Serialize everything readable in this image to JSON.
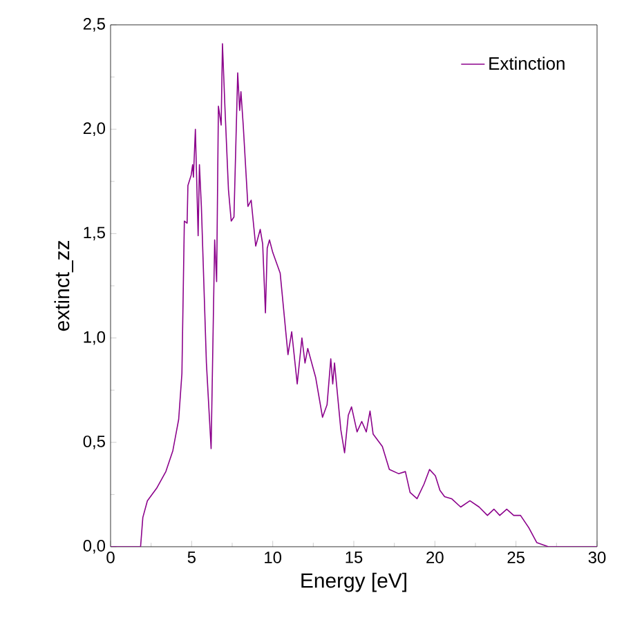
{
  "chart_data": {
    "type": "line",
    "xlabel": "Energy [eV]",
    "ylabel": "extinct_zz",
    "legend": "top right",
    "grid": false,
    "x": [
      0,
      1.85,
      1.99,
      2.27,
      2.84,
      3.41,
      3.84,
      4.2,
      4.4,
      4.55,
      4.72,
      4.77,
      4.97,
      5.06,
      5.11,
      5.23,
      5.4,
      5.48,
      5.6,
      5.91,
      6.2,
      6.42,
      6.54,
      6.65,
      6.82,
      6.9,
      7.05,
      7.27,
      7.44,
      7.61,
      7.84,
      7.96,
      8.04,
      8.18,
      8.47,
      8.67,
      8.95,
      9.23,
      9.38,
      9.55,
      9.66,
      9.8,
      10.0,
      10.46,
      10.94,
      11.17,
      11.51,
      11.8,
      11.99,
      12.16,
      12.65,
      13.07,
      13.35,
      13.58,
      13.7,
      13.81,
      14.2,
      14.43,
      14.66,
      14.86,
      15.2,
      15.49,
      15.77,
      16.0,
      16.19,
      16.76,
      17.19,
      17.76,
      18.18,
      18.47,
      18.9,
      19.33,
      19.67,
      20.03,
      20.31,
      20.6,
      21.03,
      21.59,
      22.16,
      22.73,
      23.24,
      23.64,
      24.0,
      24.43,
      24.86,
      25.28,
      25.8,
      26.28,
      27.0,
      30
    ],
    "series": [
      {
        "name": "Extinction",
        "color": "#8b008b",
        "values": [
          0,
          0,
          0.14,
          0.22,
          0.28,
          0.36,
          0.46,
          0.61,
          0.83,
          1.56,
          1.55,
          1.73,
          1.78,
          1.83,
          1.77,
          2.0,
          1.49,
          1.83,
          1.63,
          0.88,
          0.47,
          1.47,
          1.27,
          2.11,
          2.02,
          2.41,
          2.11,
          1.71,
          1.56,
          1.58,
          2.27,
          2.09,
          2.18,
          2.02,
          1.63,
          1.66,
          1.44,
          1.52,
          1.45,
          1.12,
          1.43,
          1.47,
          1.41,
          1.31,
          0.92,
          1.03,
          0.78,
          1.0,
          0.88,
          0.95,
          0.81,
          0.62,
          0.68,
          0.9,
          0.78,
          0.88,
          0.56,
          0.45,
          0.63,
          0.67,
          0.55,
          0.6,
          0.55,
          0.65,
          0.54,
          0.48,
          0.37,
          0.35,
          0.36,
          0.26,
          0.23,
          0.3,
          0.37,
          0.34,
          0.27,
          0.24,
          0.23,
          0.19,
          0.22,
          0.19,
          0.15,
          0.18,
          0.15,
          0.18,
          0.15,
          0.15,
          0.09,
          0.02,
          0,
          0
        ]
      }
    ],
    "xlim": [
      0,
      30
    ],
    "xticks": [
      0,
      5,
      10,
      15,
      20,
      25,
      30
    ],
    "ylim": [
      0,
      2.5
    ],
    "yticks": [
      {
        "value": 0,
        "label": "0,0"
      },
      {
        "value": 0.5,
        "label": "0,5"
      },
      {
        "value": 1.0,
        "label": "1,0"
      },
      {
        "value": 1.5,
        "label": "1,5"
      },
      {
        "value": 2.0,
        "label": "2,0"
      },
      {
        "value": 2.5,
        "label": "2,5"
      }
    ],
    "marker": "none",
    "line_style": "solid"
  }
}
